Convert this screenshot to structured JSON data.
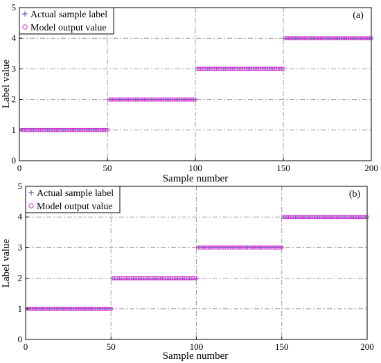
{
  "colors": {
    "plus": "#4a4aa8",
    "circle": "#d43ad4",
    "grid": "#9a9a9a",
    "axis": "#000000"
  },
  "chart_data": [
    {
      "type": "scatter",
      "panel_label": "(a)",
      "xlabel": "Sample number",
      "ylabel": "Label value",
      "xlim": [
        0,
        200
      ],
      "ylim": [
        0,
        5
      ],
      "xticks": [
        "0",
        "50",
        "100",
        "150",
        "200"
      ],
      "yticks": [
        "0",
        "1",
        "2",
        "3",
        "4",
        "5"
      ],
      "grid": true,
      "legend_position": "top-left",
      "series": [
        {
          "name": "Actual sample label",
          "marker": "plus",
          "segments": [
            {
              "x_from": 1,
              "x_to": 50,
              "y": 1
            },
            {
              "x_from": 51,
              "x_to": 100,
              "y": 2
            },
            {
              "x_from": 101,
              "x_to": 150,
              "y": 3
            },
            {
              "x_from": 151,
              "x_to": 200,
              "y": 4
            }
          ]
        },
        {
          "name": "Model output value",
          "marker": "circle",
          "segments": [
            {
              "x_from": 1,
              "x_to": 50,
              "y": 1
            },
            {
              "x_from": 51,
              "x_to": 100,
              "y": 2
            },
            {
              "x_from": 101,
              "x_to": 150,
              "y": 3
            },
            {
              "x_from": 151,
              "x_to": 200,
              "y": 4
            }
          ]
        }
      ]
    },
    {
      "type": "scatter",
      "panel_label": "(b)",
      "xlabel": "Sample number",
      "ylabel": "Label value",
      "xlim": [
        0,
        200
      ],
      "ylim": [
        0,
        5
      ],
      "xticks": [
        "0",
        "50",
        "100",
        "150",
        "200"
      ],
      "yticks": [
        "0",
        "1",
        "2",
        "3",
        "4",
        "5"
      ],
      "grid": true,
      "legend_position": "top-left",
      "series": [
        {
          "name": "Actual sample label",
          "marker": "plus",
          "segments": [
            {
              "x_from": 1,
              "x_to": 50,
              "y": 1
            },
            {
              "x_from": 51,
              "x_to": 100,
              "y": 2
            },
            {
              "x_from": 101,
              "x_to": 150,
              "y": 3
            },
            {
              "x_from": 151,
              "x_to": 200,
              "y": 4
            }
          ]
        },
        {
          "name": "Model output value",
          "marker": "circle",
          "segments": [
            {
              "x_from": 1,
              "x_to": 50,
              "y": 1
            },
            {
              "x_from": 51,
              "x_to": 100,
              "y": 2
            },
            {
              "x_from": 101,
              "x_to": 150,
              "y": 3
            },
            {
              "x_from": 151,
              "x_to": 200,
              "y": 4
            }
          ]
        }
      ]
    }
  ]
}
